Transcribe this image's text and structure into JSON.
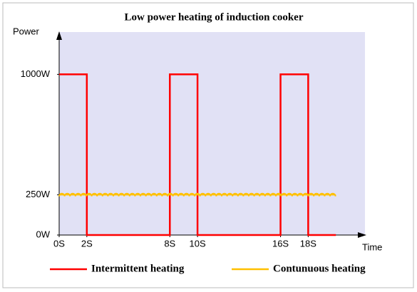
{
  "chart_data": {
    "type": "line",
    "title": "Low power heating of induction cooker",
    "y_label": "Power",
    "x_label": "Time",
    "xlim": [
      0,
      22
    ],
    "ylim": [
      0,
      1250
    ],
    "xticks": [
      {
        "value": 0,
        "label": "0S"
      },
      {
        "value": 2,
        "label": "2S"
      },
      {
        "value": 8,
        "label": "8S"
      },
      {
        "value": 10,
        "label": "10S"
      },
      {
        "value": 16,
        "label": "16S"
      },
      {
        "value": 18,
        "label": "18S"
      }
    ],
    "yticks": [
      {
        "value": 0,
        "label": "0W"
      },
      {
        "value": 250,
        "label": "250W"
      },
      {
        "value": 1000,
        "label": "1000W"
      }
    ],
    "plot_background": "#e1e1f5",
    "series": [
      {
        "name": "Intermittent heating",
        "color": "#ff0000",
        "x": [
          0,
          2,
          2,
          8,
          8,
          10,
          10,
          16,
          16,
          18,
          18,
          20
        ],
        "values": [
          1000,
          1000,
          0,
          0,
          1000,
          1000,
          0,
          0,
          1000,
          1000,
          0,
          0
        ]
      },
      {
        "name": "Contunuous heating",
        "color": "#ffc000",
        "x": [
          0,
          20
        ],
        "values": [
          250,
          250
        ]
      }
    ]
  }
}
